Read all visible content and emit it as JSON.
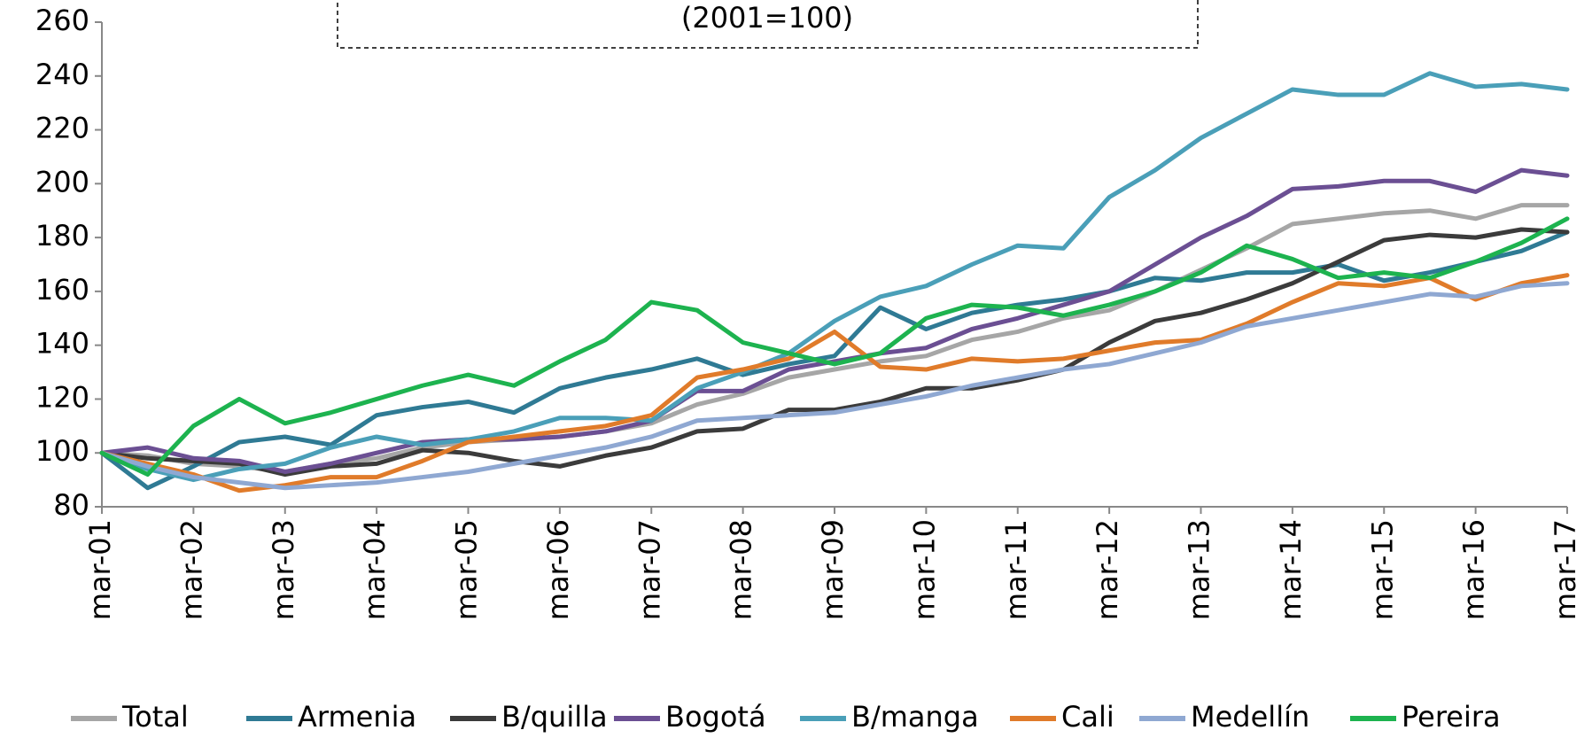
{
  "chart_data": {
    "type": "line",
    "title": "(2001=100)",
    "categories": [
      "mar-01",
      null,
      "mar-02",
      null,
      "mar-03",
      null,
      "mar-04",
      null,
      "mar-05",
      null,
      "mar-06",
      null,
      "mar-07",
      null,
      "mar-08",
      null,
      "mar-09",
      null,
      "mar-10",
      null,
      "mar-11",
      null,
      "mar-12",
      null,
      "mar-13",
      null,
      "mar-14",
      null,
      "mar-15",
      null,
      "mar-16",
      null,
      "mar-17"
    ],
    "ylim": [
      80,
      260
    ],
    "yticks": [
      80,
      100,
      120,
      140,
      160,
      180,
      200,
      220,
      240,
      260
    ],
    "grid": false,
    "legend": "bottom",
    "series": [
      {
        "name": "Total",
        "color": "#a6a6a6",
        "values": [
          100,
          99,
          96,
          95,
          93,
          96,
          98,
          102,
          104,
          105,
          106,
          108,
          111,
          118,
          122,
          128,
          131,
          134,
          136,
          142,
          145,
          150,
          153,
          160,
          168,
          176,
          185,
          187,
          189,
          190,
          187,
          192,
          192
        ]
      },
      {
        "name": "Armenia",
        "color": "#2f7a94",
        "values": [
          100,
          87,
          95,
          104,
          106,
          103,
          114,
          117,
          119,
          115,
          124,
          128,
          131,
          135,
          129,
          133,
          136,
          154,
          146,
          152,
          155,
          157,
          160,
          165,
          164,
          167,
          167,
          170,
          164,
          167,
          171,
          175,
          182
        ]
      },
      {
        "name": "B/quilla",
        "color": "#3b3b3b",
        "values": [
          100,
          98,
          97,
          96,
          92,
          95,
          96,
          101,
          100,
          97,
          95,
          99,
          102,
          108,
          109,
          116,
          116,
          119,
          124,
          124,
          127,
          131,
          141,
          149,
          152,
          157,
          163,
          171,
          179,
          181,
          180,
          183,
          182
        ]
      },
      {
        "name": "Bogotá",
        "color": "#6b4f93",
        "values": [
          100,
          102,
          98,
          97,
          93,
          96,
          100,
          104,
          105,
          105,
          106,
          108,
          112,
          123,
          123,
          131,
          134,
          137,
          139,
          146,
          150,
          155,
          160,
          170,
          180,
          188,
          198,
          199,
          201,
          201,
          197,
          205,
          203
        ]
      },
      {
        "name": "B/manga",
        "color": "#4a9fb8",
        "values": [
          100,
          94,
          90,
          94,
          96,
          102,
          106,
          103,
          105,
          108,
          113,
          113,
          112,
          124,
          130,
          137,
          149,
          158,
          162,
          170,
          177,
          176,
          195,
          205,
          217,
          226,
          235,
          233,
          233,
          241,
          236,
          237,
          235
        ]
      },
      {
        "name": "Cali",
        "color": "#e07b2a",
        "values": [
          100,
          96,
          92,
          86,
          88,
          91,
          91,
          97,
          104,
          106,
          108,
          110,
          114,
          128,
          131,
          135,
          145,
          132,
          131,
          135,
          134,
          135,
          138,
          141,
          142,
          148,
          156,
          163,
          162,
          165,
          157,
          163,
          166
        ]
      },
      {
        "name": "Medellín",
        "color": "#8fa8d2",
        "values": [
          100,
          95,
          91,
          89,
          87,
          88,
          89,
          91,
          93,
          96,
          99,
          102,
          106,
          112,
          113,
          114,
          115,
          118,
          121,
          125,
          128,
          131,
          133,
          137,
          141,
          147,
          150,
          153,
          156,
          159,
          158,
          162,
          163
        ]
      },
      {
        "name": "Pereira",
        "color": "#1db34f",
        "values": [
          100,
          92,
          110,
          120,
          111,
          115,
          120,
          125,
          129,
          125,
          134,
          142,
          156,
          153,
          141,
          137,
          133,
          137,
          150,
          155,
          154,
          151,
          155,
          160,
          167,
          177,
          172,
          165,
          167,
          165,
          171,
          178,
          187
        ]
      }
    ]
  }
}
